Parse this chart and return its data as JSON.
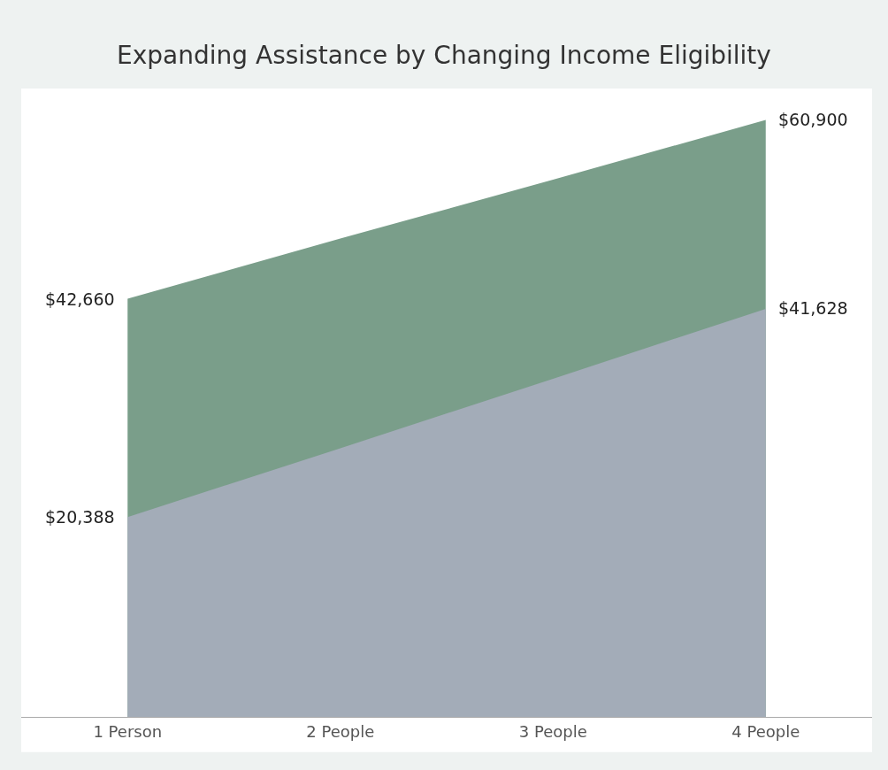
{
  "chart_data": {
    "type": "area",
    "title": "Expanding Assistance by Changing Income Eligibility",
    "categories": [
      "1 Person",
      "2 People",
      "3 People",
      "4 People"
    ],
    "series": [
      {
        "color": "#7a9e8a",
        "values": [
          42660,
          48800,
          54800,
          60900
        ],
        "value_labels": [
          "$42,660",
          null,
          null,
          "$60,900"
        ]
      },
      {
        "color": "#a3acb8",
        "values": [
          20388,
          27400,
          34500,
          41628
        ],
        "value_labels": [
          "$20,388",
          null,
          null,
          "$41,628"
        ]
      }
    ],
    "tick_labels": "x"
  }
}
